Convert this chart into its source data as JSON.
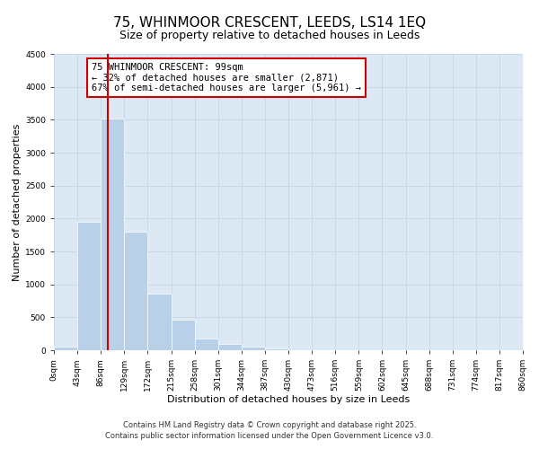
{
  "title": "75, WHINMOOR CRESCENT, LEEDS, LS14 1EQ",
  "subtitle": "Size of property relative to detached houses in Leeds",
  "xlabel": "Distribution of detached houses by size in Leeds",
  "ylabel": "Number of detached properties",
  "bin_labels": [
    "0sqm",
    "43sqm",
    "86sqm",
    "129sqm",
    "172sqm",
    "215sqm",
    "258sqm",
    "301sqm",
    "344sqm",
    "387sqm",
    "430sqm",
    "473sqm",
    "516sqm",
    "559sqm",
    "602sqm",
    "645sqm",
    "688sqm",
    "731sqm",
    "774sqm",
    "817sqm",
    "860sqm"
  ],
  "bar_values": [
    50,
    1950,
    3520,
    1800,
    860,
    460,
    175,
    90,
    50,
    25,
    0,
    0,
    0,
    0,
    0,
    0,
    0,
    0,
    0,
    0
  ],
  "bar_color": "#b8d0e8",
  "vline_color": "#cc0000",
  "vline_x": 2.3,
  "annotation_text_line1": "75 WHINMOOR CRESCENT: 99sqm",
  "annotation_text_line2": "← 32% of detached houses are smaller (2,871)",
  "annotation_text_line3": "67% of semi-detached houses are larger (5,961) →",
  "box_edge_color": "#cc0000",
  "ylim": [
    0,
    4500
  ],
  "yticks": [
    0,
    500,
    1000,
    1500,
    2000,
    2500,
    3000,
    3500,
    4000,
    4500
  ],
  "grid_color": "#c8d8e8",
  "background_color": "#dce8f4",
  "footer_line1": "Contains HM Land Registry data © Crown copyright and database right 2025.",
  "footer_line2": "Contains public sector information licensed under the Open Government Licence v3.0.",
  "title_fontsize": 11,
  "subtitle_fontsize": 9,
  "axis_label_fontsize": 8,
  "tick_fontsize": 6.5,
  "annotation_fontsize": 7.5,
  "footer_fontsize": 6
}
